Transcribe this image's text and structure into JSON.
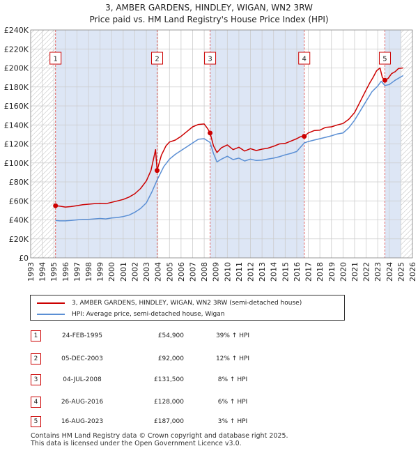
{
  "title_line1": "3, AMBER GARDENS, HINDLEY, WIGAN, WN2 3RW",
  "title_line2": "Price paid vs. HM Land Registry's House Price Index (HPI)",
  "legend": {
    "property_label": "3, AMBER GARDENS, HINDLEY, WIGAN, WN2 3RW (semi-detached house)",
    "hpi_label": "HPI: Average price, semi-detached house, Wigan"
  },
  "colors": {
    "property": "#cc0000",
    "hpi": "#5b8fd4",
    "band": "#dde6f5",
    "grid": "#cccccc",
    "marker_line": "#e06666"
  },
  "sales": [
    {
      "num": "1",
      "date": "24-FEB-1995",
      "price": "£54,900",
      "hpi": "39% ↑ HPI"
    },
    {
      "num": "2",
      "date": "05-DEC-2003",
      "price": "£92,000",
      "hpi": "12% ↑ HPI"
    },
    {
      "num": "3",
      "date": "04-JUL-2008",
      "price": "£131,500",
      "hpi": "8% ↑ HPI"
    },
    {
      "num": "4",
      "date": "26-AUG-2016",
      "price": "£128,000",
      "hpi": "6% ↑ HPI"
    },
    {
      "num": "5",
      "date": "16-AUG-2023",
      "price": "£187,000",
      "hpi": "3% ↑ HPI"
    }
  ],
  "footer": {
    "line1": "Contains HM Land Registry data © Crown copyright and database right 2025.",
    "line2": "This data is licensed under the Open Government Licence v3.0."
  },
  "chart_data": {
    "type": "line",
    "xlim": [
      1993,
      2026
    ],
    "ylim": [
      0,
      240000
    ],
    "x_ticks": [
      1993,
      1994,
      1995,
      1996,
      1997,
      1998,
      1999,
      2000,
      2001,
      2002,
      2003,
      2004,
      2005,
      2006,
      2007,
      2008,
      2009,
      2010,
      2011,
      2012,
      2013,
      2014,
      2015,
      2016,
      2017,
      2018,
      2019,
      2020,
      2021,
      2022,
      2023,
      2024,
      2025,
      2026
    ],
    "x_tick_labels": [
      "1993",
      "1994",
      "1995",
      "1996",
      "1997",
      "1998",
      "1999",
      "2000",
      "2001",
      "2002",
      "2003",
      "2004",
      "2005",
      "2006",
      "2007",
      "2008",
      "2009",
      "2010",
      "2011",
      "2012",
      "2013",
      "2014",
      "2015",
      "2016",
      "2017",
      "2018",
      "2019",
      "2020",
      "2021",
      "2022",
      "2023",
      "2024",
      "2025",
      "2026"
    ],
    "y_ticks": [
      0,
      20000,
      40000,
      60000,
      80000,
      100000,
      120000,
      140000,
      160000,
      180000,
      200000,
      220000,
      240000
    ],
    "y_tick_labels": [
      "£0",
      "£20K",
      "£40K",
      "£60K",
      "£80K",
      "£100K",
      "£120K",
      "£140K",
      "£160K",
      "£180K",
      "£200K",
      "£220K",
      "£240K"
    ],
    "hatched_ranges": [
      [
        1993,
        1995.15
      ],
      [
        2025.0,
        2026
      ]
    ],
    "shaded_ranges": [
      [
        1995.15,
        2003.93
      ],
      [
        2008.51,
        2016.65
      ],
      [
        2023.62,
        2025.0
      ]
    ],
    "sale_markers": [
      {
        "label": "1",
        "x": 1995.15,
        "y": 54900
      },
      {
        "label": "2",
        "x": 2003.93,
        "y": 92000
      },
      {
        "label": "3",
        "x": 2008.51,
        "y": 131500
      },
      {
        "label": "4",
        "x": 2016.65,
        "y": 128000
      },
      {
        "label": "5",
        "x": 2023.62,
        "y": 187000
      }
    ],
    "series": [
      {
        "name": "3, AMBER GARDENS, HINDLEY, WIGAN, WN2 3RW (semi-detached house)",
        "x": [
          1995.15,
          1995.5,
          1996,
          1996.5,
          1997,
          1997.5,
          1998,
          1998.5,
          1999,
          1999.5,
          2000,
          2000.5,
          2001,
          2001.5,
          2002,
          2002.5,
          2003,
          2003.4,
          2003.8,
          2003.93,
          2004.3,
          2004.7,
          2005,
          2005.5,
          2006,
          2006.5,
          2007,
          2007.5,
          2008,
          2008.3,
          2008.51,
          2008.8,
          2009.1,
          2009.5,
          2010,
          2010.5,
          2011,
          2011.5,
          2012,
          2012.5,
          2013,
          2013.5,
          2014,
          2014.5,
          2015,
          2015.5,
          2016,
          2016.3,
          2016.65,
          2017,
          2017.5,
          2018,
          2018.5,
          2019,
          2019.5,
          2020,
          2020.5,
          2021,
          2021.5,
          2022,
          2022.3,
          2022.6,
          2022.9,
          2023.2,
          2023.4,
          2023.62,
          2023.9,
          2024.2,
          2024.5,
          2024.8,
          2025.2
        ],
        "y": [
          54900,
          54500,
          53500,
          54000,
          55000,
          56000,
          56500,
          57000,
          57500,
          57000,
          58500,
          60000,
          61500,
          64000,
          67500,
          73000,
          81000,
          92000,
          114000,
          92000,
          108000,
          118000,
          122000,
          124000,
          128000,
          133000,
          138000,
          140500,
          141000,
          136000,
          131500,
          118000,
          111000,
          116000,
          119000,
          114000,
          116500,
          112500,
          115000,
          113000,
          114500,
          115500,
          117500,
          120000,
          120500,
          123000,
          125500,
          127500,
          128000,
          131500,
          134000,
          134500,
          137500,
          138000,
          140000,
          141500,
          146000,
          153000,
          165000,
          177000,
          184000,
          190000,
          197000,
          200000,
          190000,
          187000,
          189000,
          194000,
          196000,
          199500,
          200000
        ]
      },
      {
        "name": "HPI: Average price, semi-detached house, Wigan",
        "x": [
          1995.15,
          1995.5,
          1996,
          1996.5,
          1997,
          1997.5,
          1998,
          1998.5,
          1999,
          1999.5,
          2000,
          2000.5,
          2001,
          2001.5,
          2002,
          2002.5,
          2003,
          2003.5,
          2003.93,
          2004.5,
          2005,
          2005.5,
          2006,
          2006.5,
          2007,
          2007.5,
          2008,
          2008.51,
          2008.8,
          2009.1,
          2009.5,
          2010,
          2010.5,
          2011,
          2011.5,
          2012,
          2012.5,
          2013,
          2013.5,
          2014,
          2014.5,
          2015,
          2015.5,
          2016,
          2016.65,
          2017,
          2017.5,
          2018,
          2018.5,
          2019,
          2019.5,
          2020,
          2020.5,
          2021,
          2021.5,
          2022,
          2022.5,
          2023,
          2023.3,
          2023.62,
          2024,
          2024.5,
          2025.2
        ],
        "y": [
          39500,
          39000,
          39000,
          39500,
          40000,
          40500,
          40500,
          41000,
          41500,
          41000,
          42000,
          42500,
          43500,
          45000,
          48000,
          52000,
          58000,
          70000,
          82000,
          96000,
          104000,
          109000,
          113000,
          117000,
          121000,
          125000,
          125500,
          121500,
          110000,
          101000,
          104000,
          107000,
          103500,
          105000,
          102000,
          104000,
          102500,
          103000,
          104000,
          105000,
          106500,
          108500,
          110000,
          112000,
          121000,
          122500,
          124000,
          125500,
          127000,
          128500,
          130500,
          131500,
          137000,
          145000,
          155000,
          165000,
          175000,
          181000,
          186000,
          181500,
          182500,
          187000,
          192000
        ]
      }
    ]
  }
}
